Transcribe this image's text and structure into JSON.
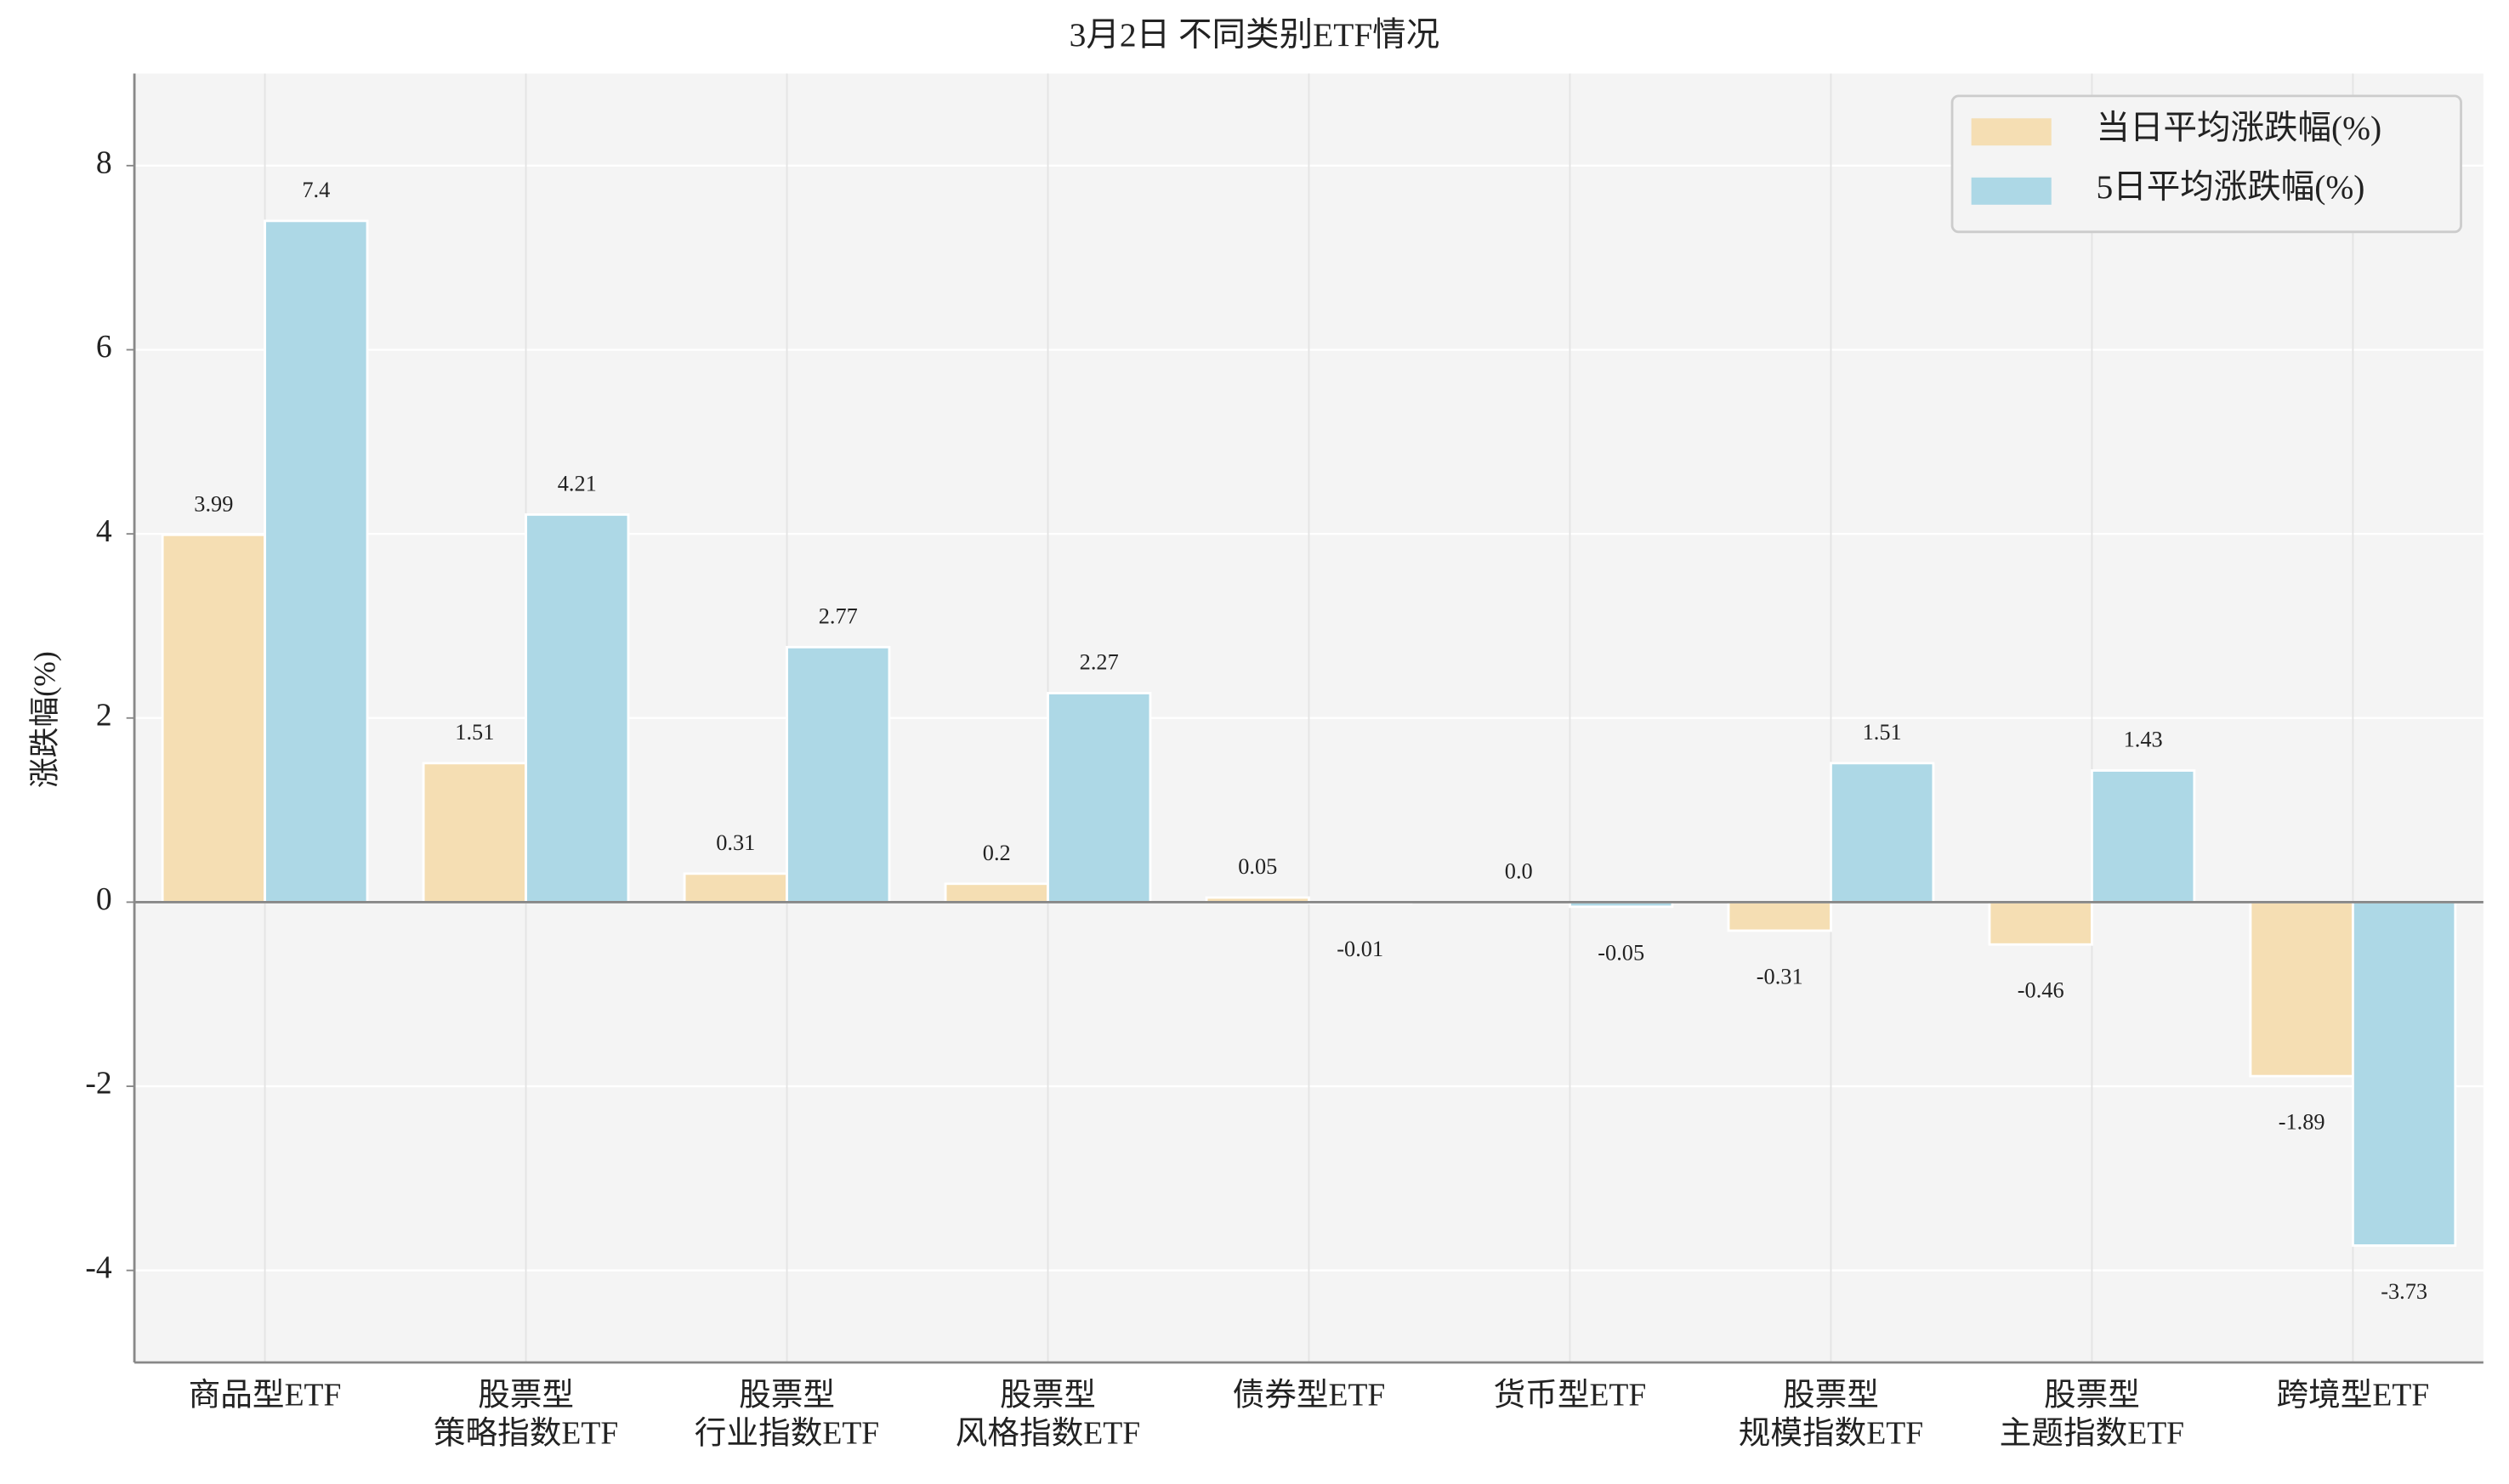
{
  "chart_data": {
    "type": "bar",
    "title": "3月2日 不同类别ETF情况",
    "y_label": "涨跌幅(%)",
    "categories": [
      "商品型ETF",
      "股票型\n策略指数ETF",
      "股票型\n行业指数ETF",
      "股票型\n风格指数ETF",
      "债券型ETF",
      "货币型ETF",
      "股票型\n规模指数ETF",
      "股票型\n主题指数ETF",
      "跨境型ETF"
    ],
    "series": [
      {
        "name": "当日平均涨跌幅(%)",
        "color": "#f5deb3",
        "values": [
          3.99,
          1.51,
          0.31,
          0.2,
          0.05,
          0.0,
          -0.31,
          -0.46,
          -1.89
        ],
        "value_labels": [
          "3.99",
          "1.51",
          "0.31",
          "0.2",
          "0.05",
          "0.0",
          "-0.31",
          "-0.46",
          "-1.89"
        ]
      },
      {
        "name": "5日平均涨跌幅(%)",
        "color": "#add8e6",
        "values": [
          7.4,
          4.21,
          2.77,
          2.27,
          -0.01,
          -0.05,
          1.51,
          1.43,
          -3.73
        ],
        "value_labels": [
          "7.4",
          "4.21",
          "2.77",
          "2.27",
          "-0.01",
          "-0.05",
          "1.51",
          "1.43",
          "-3.73"
        ]
      }
    ],
    "ylim": [
      -5,
      9
    ],
    "yticks": [
      -4,
      -2,
      0,
      2,
      4,
      6,
      8
    ],
    "grid": true,
    "legend": "upper right"
  }
}
